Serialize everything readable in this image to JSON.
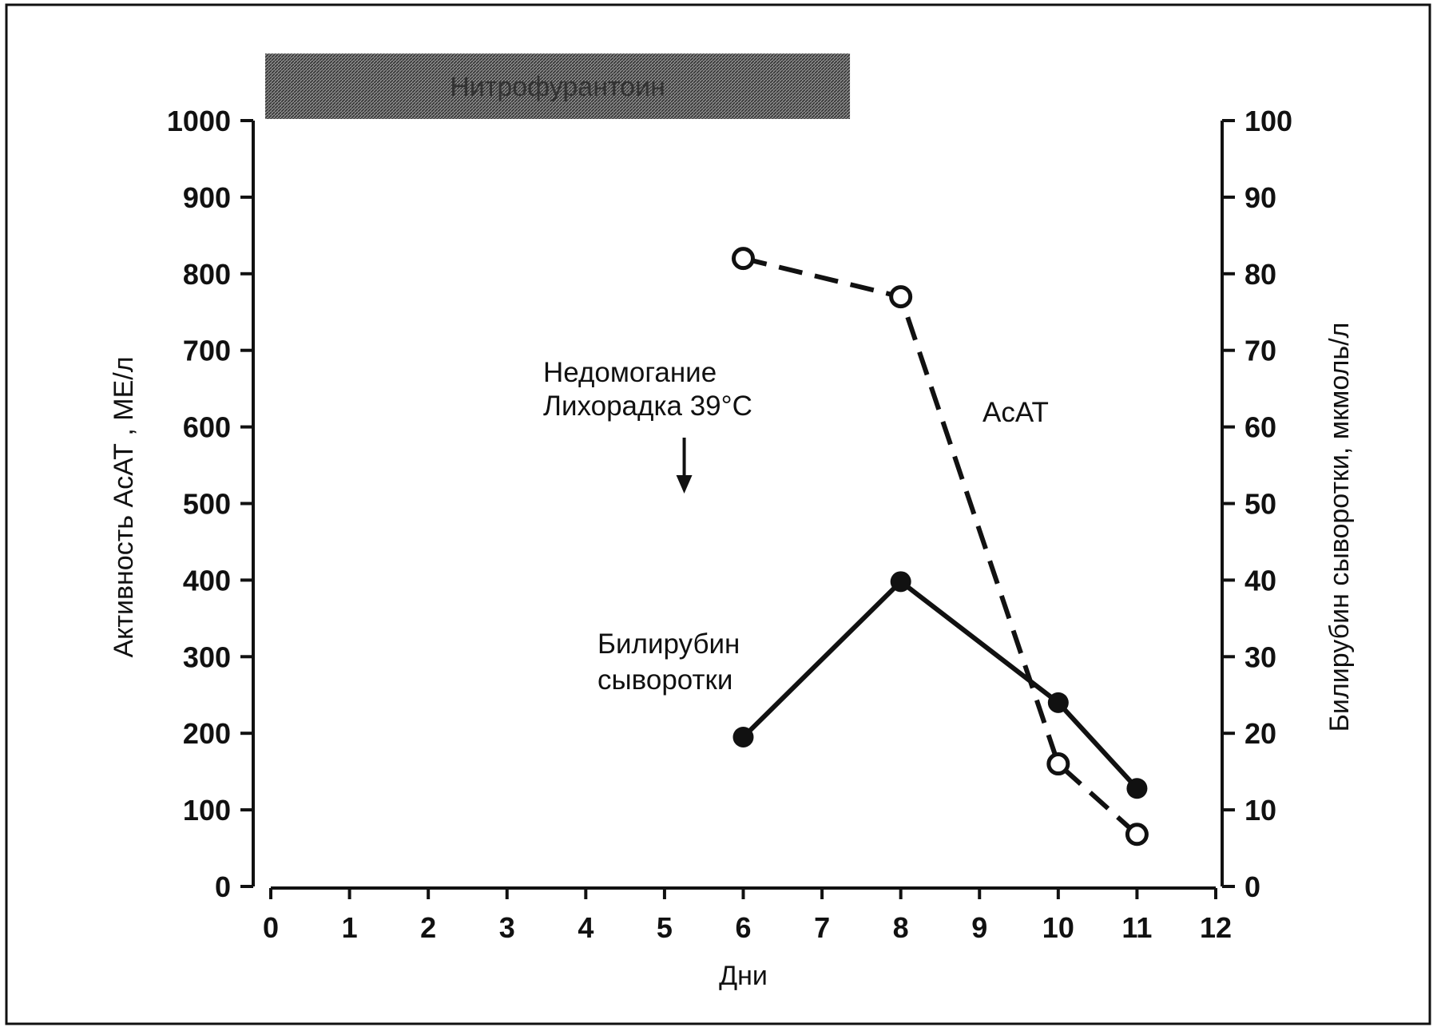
{
  "chart_data": {
    "type": "line",
    "x_axis": {
      "label": "Дни",
      "ticks": [
        0,
        1,
        2,
        3,
        4,
        5,
        6,
        7,
        8,
        9,
        10,
        11,
        12
      ],
      "tick_labels": [
        "0",
        "1",
        "2",
        "3",
        "4",
        "5",
        "6",
        "7",
        "8",
        "9",
        "10",
        "11",
        "12"
      ],
      "range": [
        0,
        12
      ]
    },
    "y_left_axis": {
      "label": "Активность АсАТ , МЕ/л",
      "ticks": [
        0,
        100,
        200,
        300,
        400,
        500,
        600,
        700,
        800,
        900,
        1000
      ],
      "tick_labels": [
        "0",
        "100",
        "200",
        "300",
        "400",
        "500",
        "600",
        "700",
        "800",
        "900",
        "1000"
      ],
      "range": [
        0,
        1000
      ]
    },
    "y_right_axis": {
      "label": "Билирубин сыворотки,  мкмоль/л",
      "ticks": [
        0,
        10,
        20,
        30,
        40,
        50,
        60,
        70,
        80,
        90,
        100
      ],
      "tick_labels": [
        "0",
        "10",
        "20",
        "30",
        "40",
        "50",
        "60",
        "70",
        "80",
        "90",
        "100"
      ],
      "range": [
        0,
        100
      ]
    },
    "series": [
      {
        "name": "АсАТ",
        "axis": "left",
        "style": "dashed",
        "marker": "open-circle",
        "points": [
          {
            "x": 6,
            "y": 820
          },
          {
            "x": 8,
            "y": 770
          },
          {
            "x": 10,
            "y": 160
          },
          {
            "x": 11,
            "y": 68
          }
        ]
      },
      {
        "name": "Билирубин сыворотки",
        "axis": "right",
        "style": "solid",
        "marker": "filled-circle",
        "points": [
          {
            "x": 6,
            "y": 19.5
          },
          {
            "x": 8,
            "y": 39.8
          },
          {
            "x": 10,
            "y": 24
          },
          {
            "x": 11,
            "y": 12.8
          }
        ]
      }
    ],
    "treatment_band": {
      "label": "Нитрофурантоин",
      "x_start": 0,
      "x_end": 7
    },
    "event_annotation": {
      "lines": [
        "Недомогание",
        "Лихорадка 39°С"
      ],
      "x": 5.25
    },
    "series_labels": {
      "acat": "АсАТ",
      "bilirubin_lines": [
        "Билирубин",
        "сыворотки"
      ]
    },
    "grid": false,
    "legend": "none",
    "colors": {
      "line": "#111111",
      "band": "#6b6b6b",
      "background": "#ffffff"
    }
  }
}
